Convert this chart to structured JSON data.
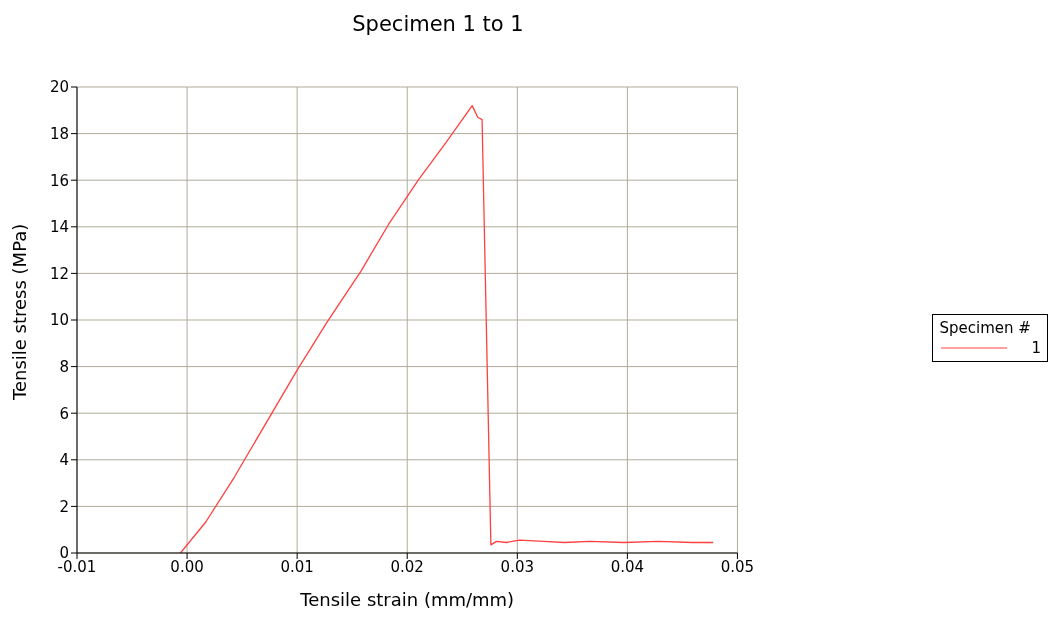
{
  "chart_data": {
    "type": "line",
    "title": "Specimen 1 to 1",
    "xlabel": "Tensile strain (mm/mm)",
    "ylabel": "Tensile stress (MPa)",
    "legend_title": "Specimen #",
    "x": [
      -0.0006,
      0.0017,
      0.0043,
      0.01,
      0.0127,
      0.0158,
      0.0183,
      0.021,
      0.0235,
      0.0259,
      0.0264,
      0.0268,
      0.0276,
      0.0281,
      0.029,
      0.0302,
      0.0324,
      0.0343,
      0.0366,
      0.0397,
      0.0428,
      0.0459,
      0.0478
    ],
    "series": [
      {
        "name": "1",
        "color": "#ff4040",
        "values": [
          0,
          1.33,
          3.26,
          7.85,
          9.9,
          12.1,
          14.1,
          16.0,
          17.6,
          19.2,
          18.7,
          18.6,
          0.35,
          0.5,
          0.45,
          0.55,
          0.5,
          0.45,
          0.5,
          0.45,
          0.5,
          0.45,
          0.45
        ]
      }
    ],
    "xlim": [
      -0.01,
      0.05
    ],
    "xticks": [
      -0.01,
      {
        "value": 0,
        "label": "0.00"
      },
      0.01,
      0.02,
      0.03,
      0.04,
      0.05
    ],
    "ylim": [
      0,
      20
    ],
    "yticks": [
      0,
      2,
      4,
      6,
      8,
      10,
      12,
      14,
      16,
      18,
      20
    ],
    "grid": true,
    "legend": "right",
    "marker": "none",
    "line_style": "solid"
  }
}
